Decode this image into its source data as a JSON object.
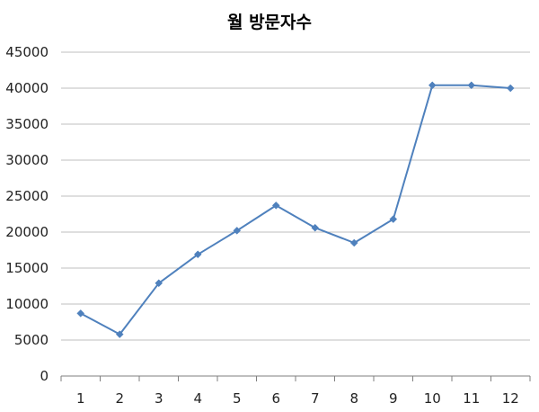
{
  "chart_data": {
    "type": "line",
    "title": "월 방문자수",
    "xlabel": "",
    "ylabel": "",
    "categories": [
      "1",
      "2",
      "3",
      "4",
      "5",
      "6",
      "7",
      "8",
      "9",
      "10",
      "11",
      "12"
    ],
    "series": [
      {
        "values": [
          8700,
          5800,
          12900,
          16900,
          20200,
          23700,
          20600,
          18500,
          21800,
          40400,
          40400,
          40000
        ]
      }
    ],
    "ylim": [
      0,
      45000
    ],
    "yticks": [
      "0",
      "5000",
      "10000",
      "15000",
      "20000",
      "25000",
      "30000",
      "35000",
      "40000",
      "45000"
    ],
    "grid": true,
    "legend": "none",
    "colors": {
      "series": "#4F81BD",
      "grid": "#BFBFBF",
      "axis": "#7F7F7F"
    }
  }
}
